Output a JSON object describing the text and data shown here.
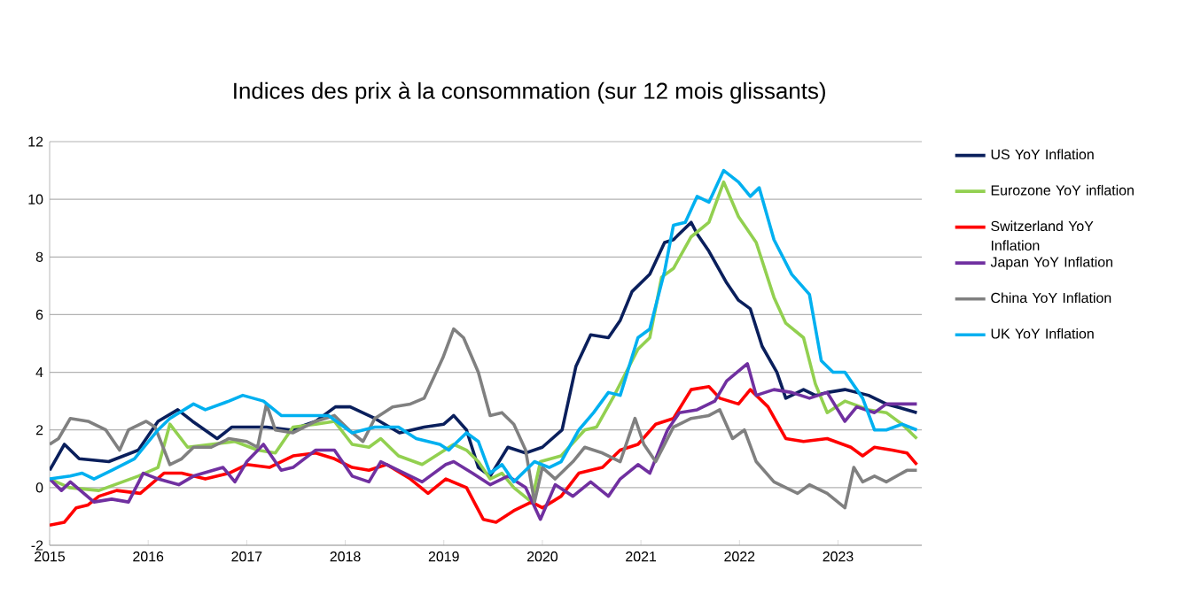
{
  "chart_data": {
    "type": "line",
    "title": "Indices des prix à la consommation (sur 12 mois glissants)",
    "xlim": [
      2015,
      2023.85
    ],
    "xticks": [
      2015,
      2016,
      2017,
      2018,
      2019,
      2020,
      2021,
      2022,
      2023
    ],
    "ylim": [
      -2,
      12
    ],
    "yticks": [
      -2,
      0,
      2,
      4,
      6,
      8,
      10,
      12
    ],
    "grid": "y",
    "legend": "right",
    "line_style": "solid",
    "marker": "none",
    "series": [
      {
        "name": "US YoY Inflation",
        "color": "#0a1f5c",
        "x": [
          2015.0,
          2015.15,
          2015.3,
          2015.6,
          2015.9,
          2016.1,
          2016.3,
          2016.45,
          2016.7,
          2016.85,
          2017.0,
          2017.2,
          2017.45,
          2017.7,
          2017.9,
          2018.05,
          2018.3,
          2018.55,
          2018.8,
          2019.0,
          2019.1,
          2019.23,
          2019.35,
          2019.47,
          2019.65,
          2019.83,
          2020.0,
          2020.2,
          2020.34,
          2020.49,
          2020.67,
          2020.79,
          2020.91,
          2021.09,
          2021.24,
          2021.33,
          2021.51,
          2021.57,
          2021.69,
          2021.87,
          2021.99,
          2022.11,
          2022.23,
          2022.38,
          2022.47,
          2022.65,
          2022.77,
          2022.89,
          2023.07,
          2023.31,
          2023.49,
          2023.7,
          2023.8
        ],
        "values": [
          0.6,
          1.5,
          1.0,
          0.9,
          1.3,
          2.3,
          2.7,
          2.3,
          1.7,
          2.1,
          2.1,
          2.1,
          2.0,
          2.3,
          2.8,
          2.8,
          2.4,
          1.9,
          2.1,
          2.2,
          2.5,
          2.0,
          0.7,
          0.4,
          1.4,
          1.2,
          1.4,
          2.0,
          4.2,
          5.3,
          5.2,
          5.8,
          6.8,
          7.4,
          8.5,
          8.6,
          9.2,
          8.8,
          8.2,
          7.1,
          6.5,
          6.2,
          4.9,
          4.0,
          3.1,
          3.4,
          3.2,
          3.3,
          3.4,
          3.2,
          2.9,
          2.7,
          2.6
        ]
      },
      {
        "name": "Eurozone YoY inflation",
        "color": "#92d050",
        "x": [
          2015.0,
          2015.2,
          2015.5,
          2015.9,
          2016.1,
          2016.22,
          2016.4,
          2016.64,
          2016.88,
          2017.11,
          2017.29,
          2017.47,
          2017.7,
          2017.89,
          2018.07,
          2018.24,
          2018.36,
          2018.54,
          2018.78,
          2019.1,
          2019.23,
          2019.35,
          2019.47,
          2019.59,
          2019.71,
          2019.89,
          2019.98,
          2020.19,
          2020.43,
          2020.55,
          2020.73,
          2020.97,
          2021.09,
          2021.21,
          2021.33,
          2021.51,
          2021.69,
          2021.84,
          2021.99,
          2022.17,
          2022.35,
          2022.47,
          2022.65,
          2022.77,
          2022.89,
          2023.07,
          2023.31,
          2023.49,
          2023.65,
          2023.8
        ],
        "values": [
          0.3,
          0.0,
          -0.1,
          0.4,
          0.7,
          2.2,
          1.4,
          1.5,
          1.6,
          1.3,
          1.2,
          2.1,
          2.2,
          2.3,
          1.5,
          1.4,
          1.7,
          1.1,
          0.8,
          1.5,
          1.3,
          0.9,
          0.3,
          0.5,
          0.0,
          -0.5,
          0.9,
          1.1,
          2.0,
          2.1,
          3.2,
          4.8,
          5.2,
          7.3,
          7.6,
          8.7,
          9.2,
          10.6,
          9.4,
          8.5,
          6.6,
          5.7,
          5.2,
          3.6,
          2.6,
          3.0,
          2.7,
          2.6,
          2.2,
          1.7
        ]
      },
      {
        "name": "Switzerland YoY Inflation",
        "color": "#ff0000",
        "x": [
          2015.0,
          2015.15,
          2015.27,
          2015.39,
          2015.5,
          2015.68,
          2015.92,
          2016.16,
          2016.34,
          2016.58,
          2016.82,
          2017.0,
          2017.23,
          2017.47,
          2017.7,
          2017.89,
          2018.07,
          2018.24,
          2018.42,
          2018.66,
          2018.84,
          2019.02,
          2019.23,
          2019.4,
          2019.53,
          2019.71,
          2019.89,
          2020.0,
          2020.19,
          2020.37,
          2020.61,
          2020.79,
          2020.97,
          2021.15,
          2021.33,
          2021.51,
          2021.69,
          2021.8,
          2021.99,
          2022.11,
          2022.29,
          2022.47,
          2022.65,
          2022.89,
          2023.13,
          2023.25,
          2023.37,
          2023.55,
          2023.7,
          2023.8
        ],
        "values": [
          -1.3,
          -1.2,
          -0.7,
          -0.6,
          -0.3,
          -0.1,
          -0.2,
          0.5,
          0.5,
          0.3,
          0.5,
          0.8,
          0.7,
          1.1,
          1.2,
          1.0,
          0.7,
          0.6,
          0.8,
          0.3,
          -0.2,
          0.3,
          0.0,
          -1.1,
          -1.2,
          -0.8,
          -0.5,
          -0.7,
          -0.3,
          0.5,
          0.7,
          1.3,
          1.5,
          2.2,
          2.4,
          3.4,
          3.5,
          3.1,
          2.9,
          3.4,
          2.8,
          1.7,
          1.6,
          1.7,
          1.4,
          1.1,
          1.4,
          1.3,
          1.2,
          0.8
        ]
      },
      {
        "name": "Japan YoY Inflation",
        "color": "#7030a0",
        "x": [
          2015.0,
          2015.12,
          2015.21,
          2015.45,
          2015.63,
          2015.8,
          2015.95,
          2016.1,
          2016.31,
          2016.46,
          2016.76,
          2016.88,
          2017.0,
          2017.17,
          2017.35,
          2017.47,
          2017.7,
          2017.89,
          2018.07,
          2018.24,
          2018.36,
          2018.6,
          2018.78,
          2019.02,
          2019.1,
          2019.29,
          2019.47,
          2019.65,
          2019.83,
          2019.98,
          2020.13,
          2020.31,
          2020.49,
          2020.67,
          2020.79,
          2020.97,
          2021.09,
          2021.27,
          2021.39,
          2021.57,
          2021.75,
          2021.87,
          2022.08,
          2022.17,
          2022.35,
          2022.53,
          2022.71,
          2022.89,
          2023.07,
          2023.19,
          2023.37,
          2023.49,
          2023.8
        ],
        "values": [
          0.3,
          -0.1,
          0.2,
          -0.5,
          -0.4,
          -0.5,
          0.5,
          0.3,
          0.1,
          0.4,
          0.7,
          0.2,
          0.9,
          1.5,
          0.6,
          0.7,
          1.3,
          1.3,
          0.4,
          0.2,
          0.9,
          0.5,
          0.2,
          0.8,
          0.9,
          0.5,
          0.1,
          0.4,
          0.0,
          -1.1,
          0.1,
          -0.3,
          0.2,
          -0.3,
          0.3,
          0.8,
          0.5,
          2.0,
          2.6,
          2.7,
          3.0,
          3.7,
          4.3,
          3.2,
          3.4,
          3.3,
          3.1,
          3.3,
          2.3,
          2.8,
          2.6,
          2.9,
          2.9
        ]
      },
      {
        "name": "China YoY Inflation",
        "color": "#808080",
        "x": [
          2015.0,
          2015.09,
          2015.21,
          2015.39,
          2015.57,
          2015.71,
          2015.8,
          2015.98,
          2016.07,
          2016.22,
          2016.34,
          2016.46,
          2016.64,
          2016.82,
          2017.0,
          2017.11,
          2017.2,
          2017.29,
          2017.47,
          2017.7,
          2017.89,
          2018.07,
          2018.18,
          2018.3,
          2018.48,
          2018.66,
          2018.8,
          2018.99,
          2019.1,
          2019.2,
          2019.35,
          2019.47,
          2019.59,
          2019.71,
          2019.83,
          2019.92,
          2020.0,
          2020.13,
          2020.31,
          2020.43,
          2020.61,
          2020.79,
          2020.94,
          2021.03,
          2021.15,
          2021.33,
          2021.51,
          2021.69,
          2021.8,
          2021.93,
          2022.05,
          2022.17,
          2022.35,
          2022.59,
          2022.71,
          2022.89,
          2023.07,
          2023.16,
          2023.25,
          2023.37,
          2023.49,
          2023.7,
          2023.8
        ],
        "values": [
          1.5,
          1.7,
          2.4,
          2.3,
          2.0,
          1.3,
          2.0,
          2.3,
          2.1,
          0.8,
          1.0,
          1.4,
          1.4,
          1.7,
          1.6,
          1.4,
          2.9,
          2.0,
          1.9,
          2.3,
          2.5,
          1.9,
          1.6,
          2.4,
          2.8,
          2.9,
          3.1,
          4.5,
          5.5,
          5.2,
          4.0,
          2.5,
          2.6,
          2.2,
          1.3,
          -0.5,
          0.7,
          0.3,
          0.9,
          1.4,
          1.2,
          0.9,
          2.4,
          1.5,
          0.9,
          2.1,
          2.4,
          2.5,
          2.7,
          1.7,
          2.0,
          0.9,
          0.2,
          -0.2,
          0.1,
          -0.2,
          -0.7,
          0.7,
          0.2,
          0.4,
          0.2,
          0.6,
          0.6
        ]
      },
      {
        "name": "UK YoY Inflation",
        "color": "#00b0f0",
        "x": [
          2015.0,
          2015.21,
          2015.33,
          2015.45,
          2015.63,
          2015.86,
          2016.1,
          2016.22,
          2016.46,
          2016.58,
          2016.82,
          2016.96,
          2017.17,
          2017.35,
          2017.59,
          2017.83,
          2018.07,
          2018.3,
          2018.54,
          2018.72,
          2018.96,
          2019.05,
          2019.23,
          2019.35,
          2019.47,
          2019.59,
          2019.71,
          2019.92,
          2020.07,
          2020.19,
          2020.37,
          2020.52,
          2020.67,
          2020.79,
          2020.97,
          2021.09,
          2021.24,
          2021.33,
          2021.45,
          2021.57,
          2021.69,
          2021.84,
          2021.99,
          2022.11,
          2022.2,
          2022.35,
          2022.53,
          2022.71,
          2022.83,
          2022.95,
          2023.07,
          2023.25,
          2023.37,
          2023.49,
          2023.65,
          2023.8
        ],
        "values": [
          0.3,
          0.4,
          0.5,
          0.3,
          0.6,
          1.0,
          2.0,
          2.4,
          2.9,
          2.7,
          3.0,
          3.2,
          3.0,
          2.5,
          2.5,
          2.5,
          1.9,
          2.1,
          2.1,
          1.7,
          1.5,
          1.3,
          1.9,
          1.6,
          0.5,
          0.8,
          0.2,
          0.9,
          0.7,
          0.9,
          2.0,
          2.6,
          3.3,
          3.2,
          5.2,
          5.5,
          7.5,
          9.1,
          9.2,
          10.1,
          9.9,
          11.0,
          10.6,
          10.1,
          10.4,
          8.6,
          7.4,
          6.7,
          4.4,
          4.0,
          4.0,
          3.1,
          2.0,
          2.0,
          2.2,
          2.0
        ]
      }
    ]
  }
}
